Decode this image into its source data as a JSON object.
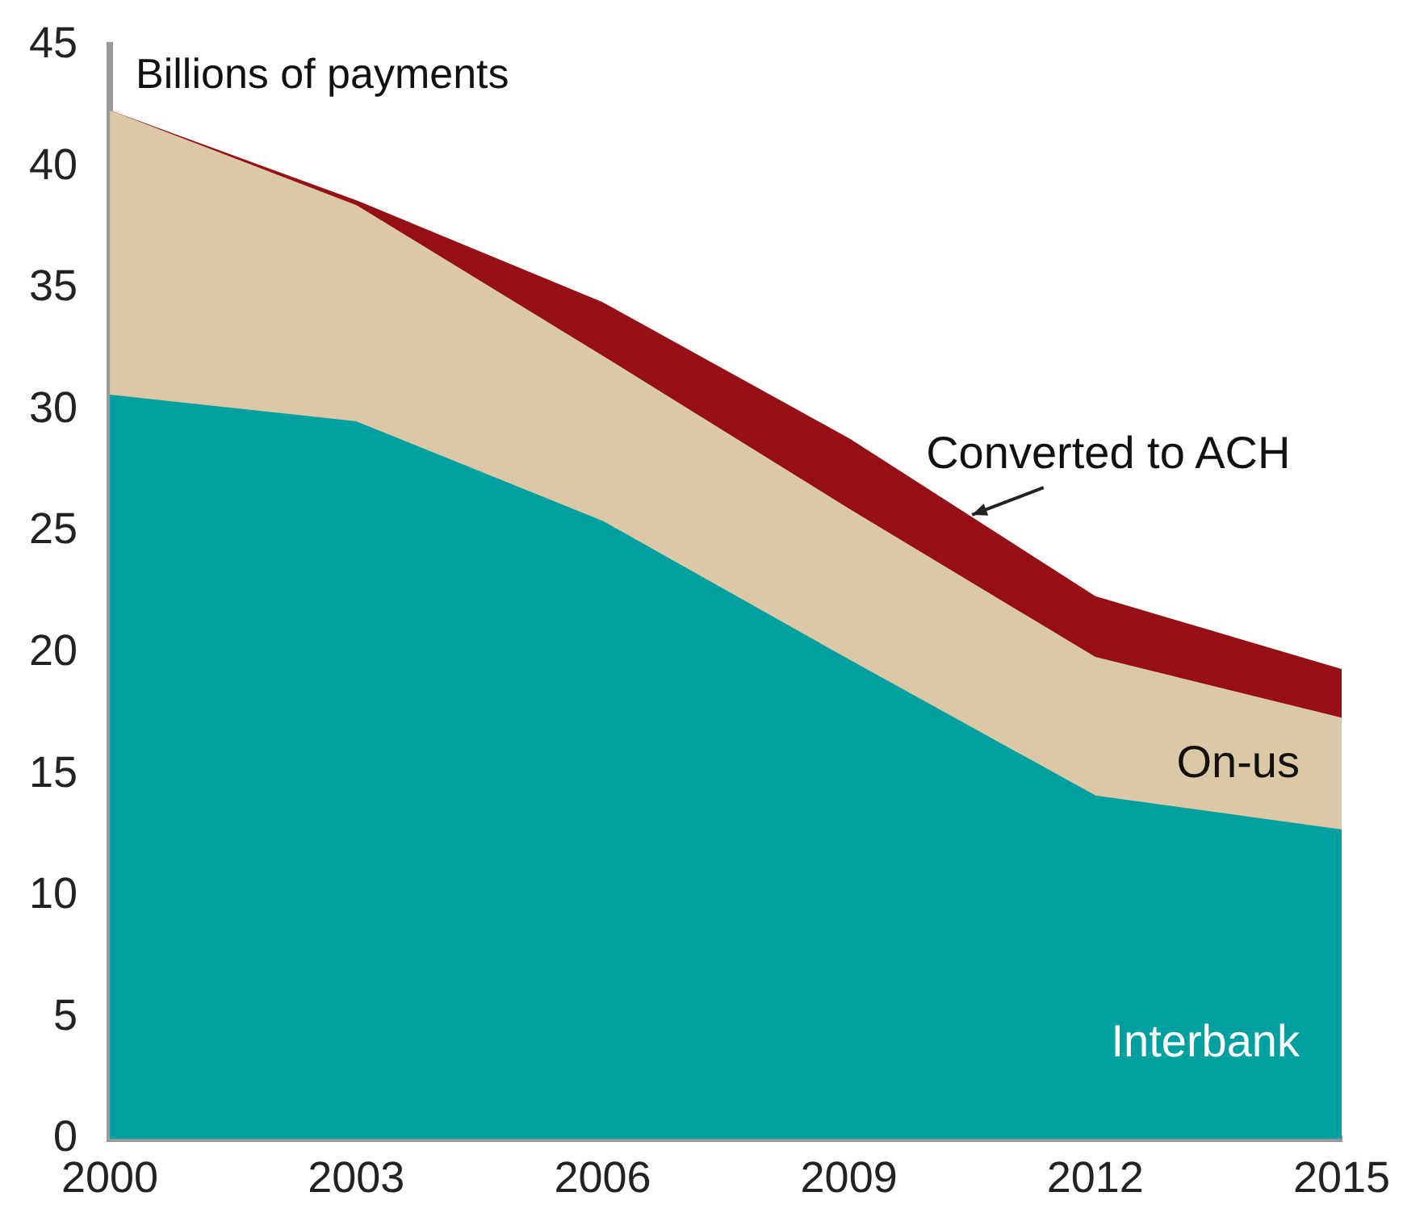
{
  "chart_data": {
    "type": "area",
    "stacked": true,
    "ylabel": "Billions of payments",
    "x": [
      2000,
      2003,
      2006,
      2009,
      2012,
      2015
    ],
    "series": [
      {
        "name": "Interbank",
        "color": "#00a0a0",
        "values": [
          30.6,
          29.5,
          25.4,
          19.7,
          14.1,
          12.7
        ]
      },
      {
        "name": "On-us",
        "color": "#dbc8a6",
        "values": [
          11.7,
          8.9,
          6.8,
          6.2,
          5.7,
          4.6
        ]
      },
      {
        "name": "Converted to ACH",
        "color": "#961015",
        "values": [
          0,
          0.2,
          2.2,
          2.9,
          2.5,
          2.0
        ]
      }
    ],
    "xlim": [
      2000,
      2015
    ],
    "xticks": [
      2000,
      2003,
      2006,
      2009,
      2012,
      2015
    ],
    "ylim": [
      0,
      45
    ],
    "yticks": [
      0,
      5,
      10,
      15,
      20,
      25,
      30,
      35,
      40,
      45
    ],
    "grid": false,
    "legend": false
  }
}
